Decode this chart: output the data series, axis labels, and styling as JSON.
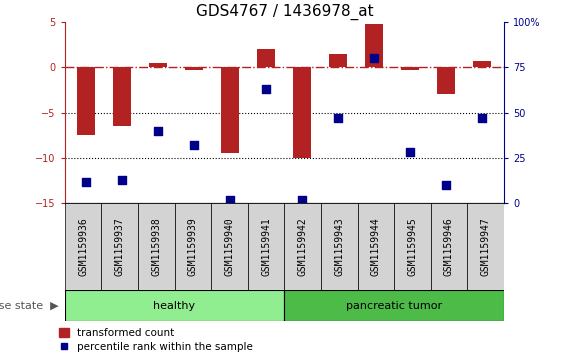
{
  "title": "GDS4767 / 1436978_at",
  "samples": [
    "GSM1159936",
    "GSM1159937",
    "GSM1159938",
    "GSM1159939",
    "GSM1159940",
    "GSM1159941",
    "GSM1159942",
    "GSM1159943",
    "GSM1159944",
    "GSM1159945",
    "GSM1159946",
    "GSM1159947"
  ],
  "transformed_count": [
    -7.5,
    -6.5,
    0.5,
    -0.3,
    -9.5,
    2.0,
    -10.0,
    1.5,
    4.8,
    -0.3,
    -3.0,
    0.7
  ],
  "percentile_rank": [
    12,
    13,
    40,
    32,
    2,
    63,
    2,
    47,
    80,
    28,
    10,
    47
  ],
  "bar_color": "#B22222",
  "dot_color": "#00008B",
  "ref_line_color": "#B22222",
  "hline_color": "black",
  "ylim_left": [
    -15,
    5
  ],
  "ylim_right": [
    0,
    100
  ],
  "yticks_left": [
    5,
    0,
    -5,
    -10,
    -15
  ],
  "yticks_right": [
    100,
    75,
    50,
    25,
    0
  ],
  "dotted_lines": [
    -5,
    -10
  ],
  "healthy_count": 6,
  "tumor_count": 6,
  "group_labels": [
    "healthy",
    "pancreatic tumor"
  ],
  "group_color_healthy": "#90EE90",
  "group_color_tumor": "#4CBB47",
  "sample_box_color": "#D3D3D3",
  "disease_state_label": "disease state",
  "legend_items": [
    "transformed count",
    "percentile rank within the sample"
  ],
  "bar_width": 0.5,
  "dot_size": 40,
  "figsize": [
    5.63,
    3.63
  ],
  "dpi": 100,
  "title_fontsize": 11,
  "tick_fontsize": 7,
  "legend_fontsize": 7.5,
  "group_label_fontsize": 8,
  "disease_state_fontsize": 8
}
